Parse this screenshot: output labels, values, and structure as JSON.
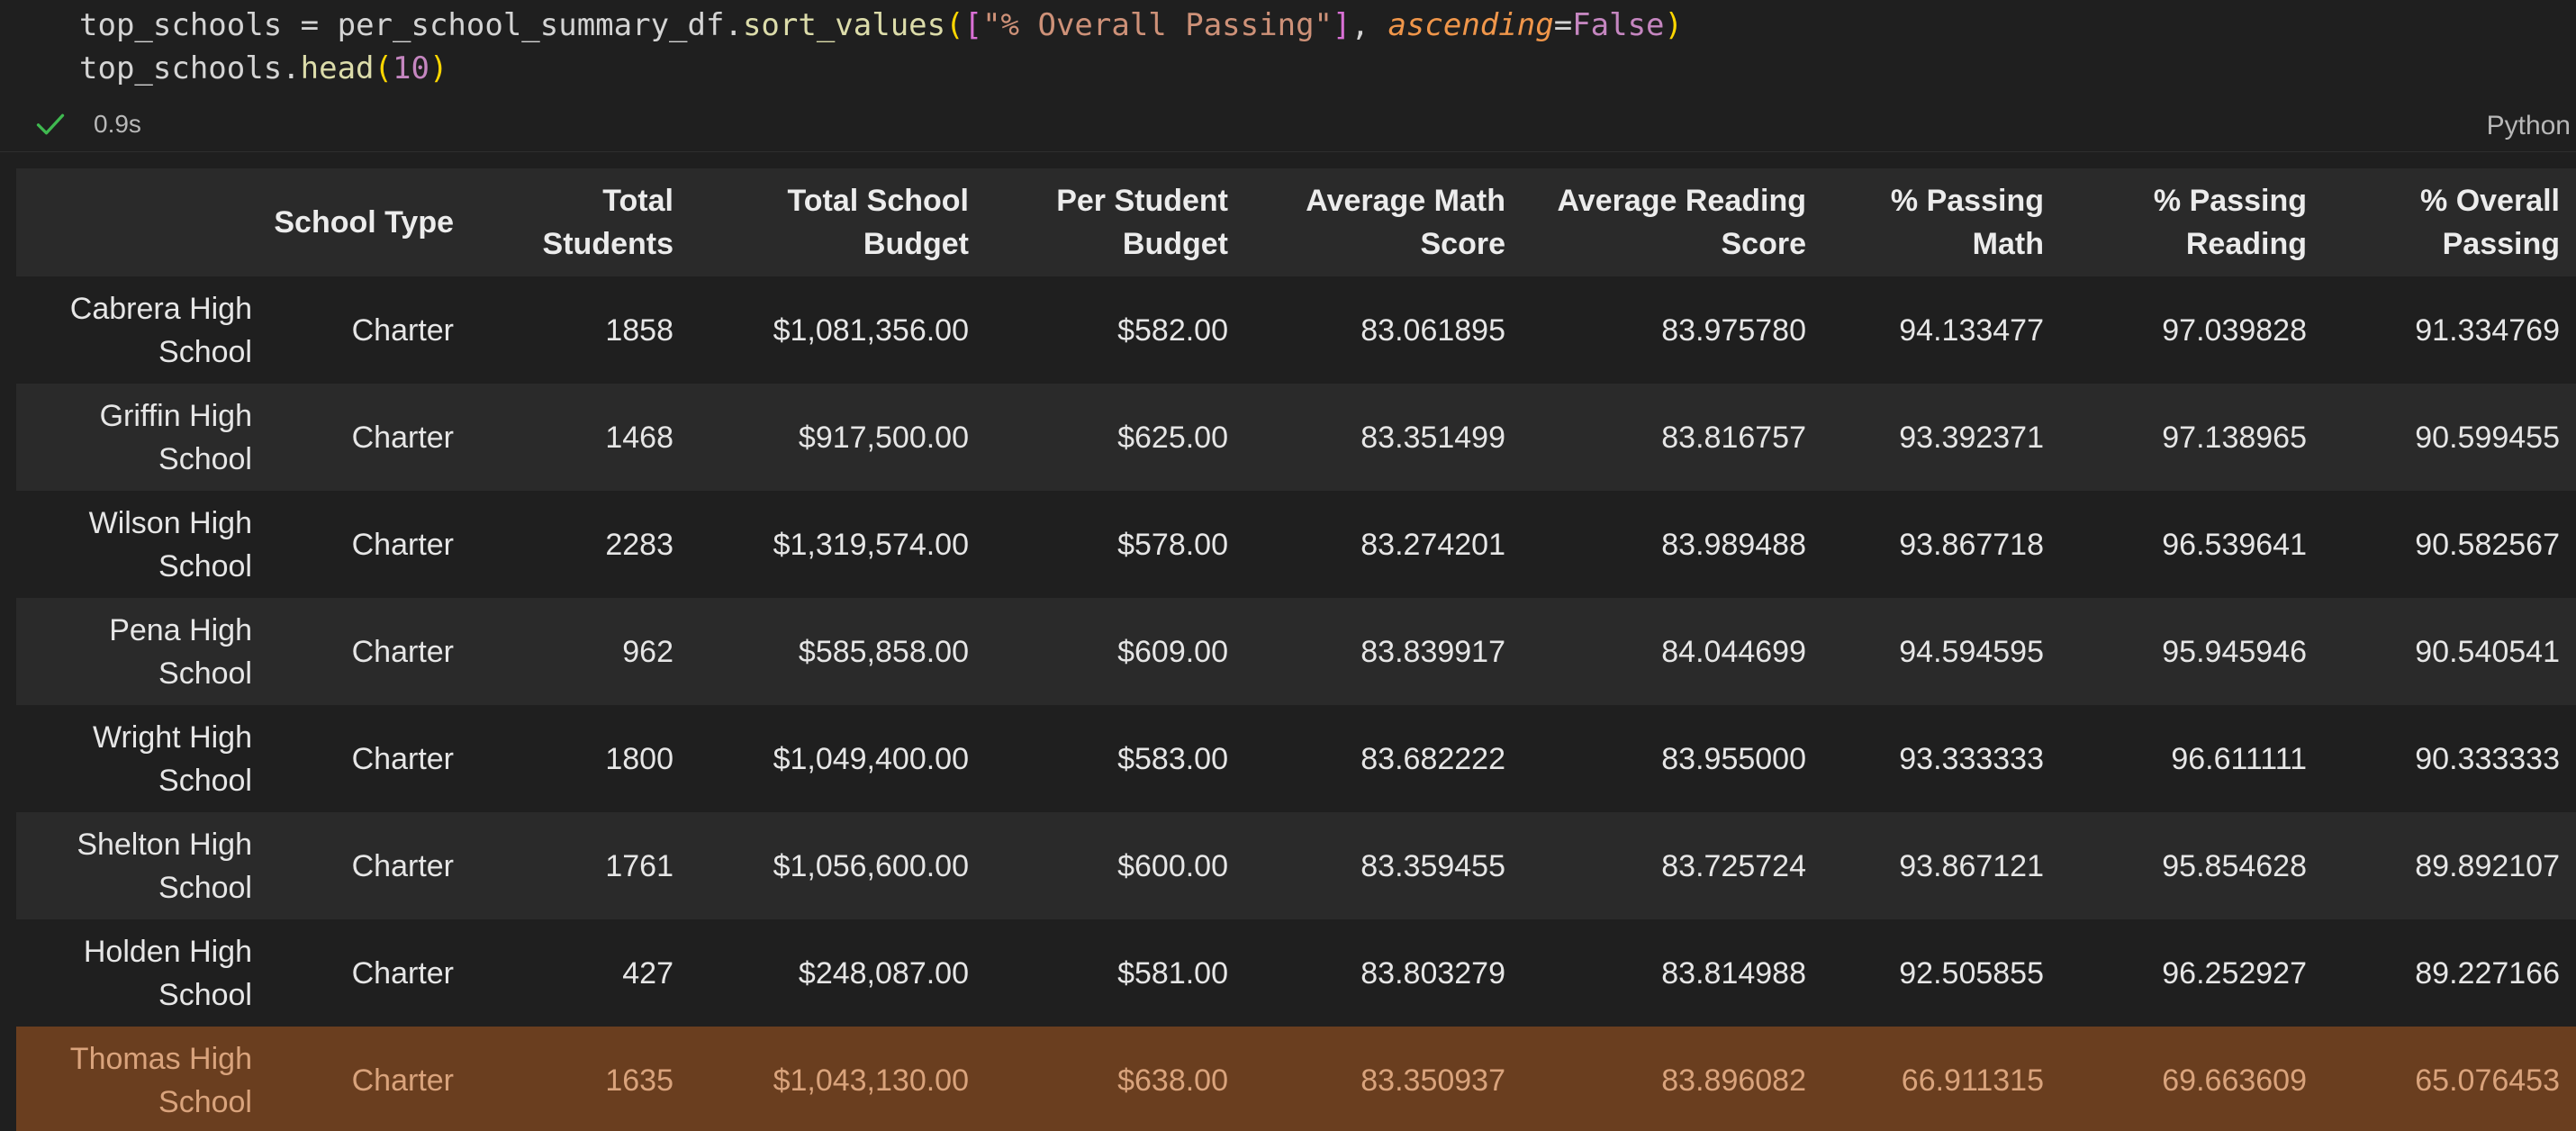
{
  "code": {
    "line1": {
      "var": "top_schools",
      "op": " = ",
      "obj": "per_school_summary_df.",
      "fn": "sort_values",
      "open_paren": "(",
      "open_bracket": "[",
      "str": "\"% Overall Passing\"",
      "close_bracket": "]",
      "comma": ", ",
      "kwarg": "ascending",
      "eq": "=",
      "value": "False",
      "close_paren": ")"
    },
    "line2": {
      "var": "top_schools.",
      "fn": "head",
      "open_paren": "(",
      "num": "10",
      "close_paren": ")"
    }
  },
  "status": {
    "check_icon": "check-icon",
    "exec_time": "0.9s",
    "language": "Python",
    "success_color": "#3fb950"
  },
  "table": {
    "columns": [
      "",
      "School Type",
      "Total Students",
      "Total School Budget",
      "Per Student Budget",
      "Average Math Score",
      "Average Reading Score",
      "% Passing Math",
      "% Passing Reading",
      "% Overall Passing"
    ],
    "rows": [
      [
        "Cabrera High School",
        "Charter",
        "1858",
        "$1,081,356.00",
        "$582.00",
        "83.061895",
        "83.975780",
        "94.133477",
        "97.039828",
        "91.334769"
      ],
      [
        "Griffin High School",
        "Charter",
        "1468",
        "$917,500.00",
        "$625.00",
        "83.351499",
        "83.816757",
        "93.392371",
        "97.138965",
        "90.599455"
      ],
      [
        "Wilson High School",
        "Charter",
        "2283",
        "$1,319,574.00",
        "$578.00",
        "83.274201",
        "83.989488",
        "93.867718",
        "96.539641",
        "90.582567"
      ],
      [
        "Pena High School",
        "Charter",
        "962",
        "$585,858.00",
        "$609.00",
        "83.839917",
        "84.044699",
        "94.594595",
        "95.945946",
        "90.540541"
      ],
      [
        "Wright High School",
        "Charter",
        "1800",
        "$1,049,400.00",
        "$583.00",
        "83.682222",
        "83.955000",
        "93.333333",
        "96.611111",
        "90.333333"
      ],
      [
        "Shelton High School",
        "Charter",
        "1761",
        "$1,056,600.00",
        "$600.00",
        "83.359455",
        "83.725724",
        "93.867121",
        "95.854628",
        "89.892107"
      ],
      [
        "Holden High School",
        "Charter",
        "427",
        "$248,087.00",
        "$581.00",
        "83.803279",
        "83.814988",
        "92.505855",
        "96.252927",
        "89.227166"
      ],
      [
        "Thomas High School",
        "Charter",
        "1635",
        "$1,043,130.00",
        "$638.00",
        "83.350937",
        "83.896082",
        "66.911315",
        "69.663609",
        "65.076453"
      ]
    ],
    "highlight_color": "#6a3e1f"
  }
}
